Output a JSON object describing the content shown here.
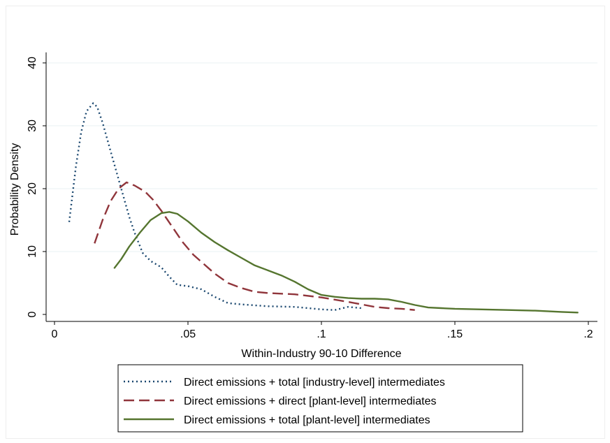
{
  "chart_data": {
    "type": "line",
    "title": "",
    "xlabel": "Within-Industry 90-10 Difference",
    "ylabel": "Probability Density",
    "xlim": [
      0,
      0.2
    ],
    "ylim": [
      0,
      40
    ],
    "x_ticks": [
      0,
      0.05,
      0.1,
      0.15,
      0.2
    ],
    "x_tick_labels": [
      "0",
      ".05",
      ".1",
      ".15",
      ".2"
    ],
    "y_ticks": [
      0,
      10,
      20,
      30,
      40
    ],
    "y_tick_labels": [
      "0",
      "10",
      "20",
      "30",
      "40"
    ],
    "grid": true,
    "legend_position": "bottom",
    "series": [
      {
        "name": "Direct emissions + total [industry-level] intermediates",
        "color": "#1a476f",
        "line_style": "dotted",
        "x": [
          0.0055,
          0.008,
          0.01,
          0.012,
          0.0145,
          0.016,
          0.018,
          0.02,
          0.022,
          0.025,
          0.028,
          0.03,
          0.033,
          0.036,
          0.04,
          0.043,
          0.046,
          0.05,
          0.055,
          0.06,
          0.065,
          0.07,
          0.08,
          0.09,
          0.1,
          0.105,
          0.11,
          0.115
        ],
        "y": [
          14.7,
          23.5,
          29,
          32.3,
          33.6,
          33,
          30.5,
          27.5,
          24.5,
          20,
          15.5,
          13,
          9.8,
          8.5,
          7.5,
          6,
          4.7,
          4.5,
          4,
          2.8,
          1.8,
          1.6,
          1.3,
          1.2,
          0.8,
          0.7,
          1.2,
          1.0
        ]
      },
      {
        "name": "Direct emissions + direct [plant-level] intermediates",
        "color": "#90353b",
        "line_style": "dashed",
        "x": [
          0.015,
          0.018,
          0.021,
          0.024,
          0.027,
          0.03,
          0.034,
          0.037,
          0.04,
          0.044,
          0.048,
          0.052,
          0.056,
          0.06,
          0.065,
          0.07,
          0.075,
          0.08,
          0.085,
          0.09,
          0.1,
          0.11,
          0.12,
          0.125,
          0.13,
          0.135
        ],
        "y": [
          11.3,
          15,
          18,
          20,
          21,
          20.5,
          19.5,
          18.2,
          16.5,
          14,
          11.5,
          9.5,
          8,
          6.5,
          5,
          4.2,
          3.6,
          3.4,
          3.3,
          3.2,
          2.7,
          2.0,
          1.2,
          1.0,
          0.9,
          0.7
        ]
      },
      {
        "name": "Direct emissions + total [plant-level] intermediates",
        "color": "#55752f",
        "line_style": "solid",
        "x": [
          0.0225,
          0.025,
          0.028,
          0.032,
          0.036,
          0.04,
          0.043,
          0.046,
          0.05,
          0.055,
          0.06,
          0.065,
          0.07,
          0.075,
          0.08,
          0.085,
          0.09,
          0.095,
          0.1,
          0.105,
          0.11,
          0.115,
          0.12,
          0.125,
          0.13,
          0.135,
          0.14,
          0.145,
          0.15,
          0.16,
          0.17,
          0.18,
          0.19,
          0.196
        ],
        "y": [
          7.4,
          8.8,
          10.8,
          13,
          15,
          16.1,
          16.3,
          16,
          14.8,
          13,
          11.5,
          10.2,
          9,
          7.8,
          7,
          6.2,
          5.2,
          4,
          3.1,
          2.8,
          2.6,
          2.5,
          2.5,
          2.4,
          2.0,
          1.5,
          1.1,
          1.0,
          0.9,
          0.8,
          0.7,
          0.6,
          0.4,
          0.3
        ]
      }
    ]
  }
}
